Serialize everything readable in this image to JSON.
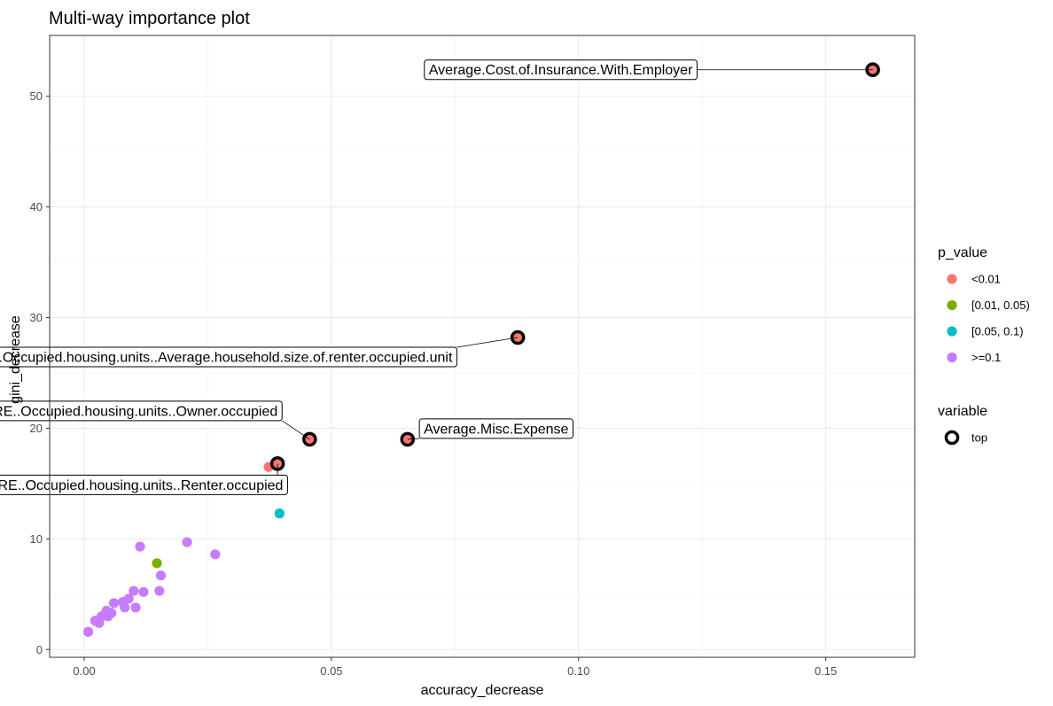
{
  "chart_data": {
    "type": "scatter",
    "title": "Multi-way importance plot",
    "xlabel": "accuracy_decrease",
    "ylabel": "gini_decrease",
    "xlim": [
      -0.007,
      0.168
    ],
    "ylim": [
      -0.7,
      55.5
    ],
    "xticks": [
      0.0,
      0.05,
      0.1,
      0.15
    ],
    "xtick_labels": [
      "0.00",
      "0.05",
      "0.10",
      "0.15"
    ],
    "yticks": [
      0,
      10,
      20,
      30,
      40,
      50
    ],
    "ytick_labels": [
      "0",
      "10",
      "20",
      "30",
      "40",
      "50"
    ],
    "grid": true,
    "legend_position": "right",
    "legend": {
      "color_title": "p_value",
      "color_entries": [
        {
          "label": "<0.01",
          "color": "#F8766D"
        },
        {
          "label": "[0.01, 0.05)",
          "color": "#7CAE00"
        },
        {
          "label": "[0.05, 0.1)",
          "color": "#00BFC4"
        },
        {
          "label": ">=0.1",
          "color": "#C77CFF"
        }
      ],
      "shape_title": "variable",
      "shape_entries": [
        {
          "label": "top"
        }
      ]
    },
    "points": [
      {
        "x": 0.1595,
        "y": 52.4,
        "group": "<0.01",
        "top": true
      },
      {
        "x": 0.0877,
        "y": 28.2,
        "group": "<0.01",
        "top": true
      },
      {
        "x": 0.0456,
        "y": 19.0,
        "group": "<0.01",
        "top": true
      },
      {
        "x": 0.0654,
        "y": 19.0,
        "group": "<0.01",
        "top": true
      },
      {
        "x": 0.0391,
        "y": 16.8,
        "group": "<0.01",
        "top": true
      },
      {
        "x": 0.0373,
        "y": 16.5,
        "group": "<0.01",
        "top": false
      },
      {
        "x": 0.0395,
        "y": 12.3,
        "group": "[0.05, 0.1)",
        "top": false
      },
      {
        "x": 0.0147,
        "y": 7.8,
        "group": "[0.01, 0.05)",
        "top": false
      },
      {
        "x": 0.0113,
        "y": 9.3,
        "group": ">=0.1",
        "top": false
      },
      {
        "x": 0.0208,
        "y": 9.7,
        "group": ">=0.1",
        "top": false
      },
      {
        "x": 0.0265,
        "y": 8.6,
        "group": ">=0.1",
        "top": false
      },
      {
        "x": 0.0155,
        "y": 6.7,
        "group": ">=0.1",
        "top": false
      },
      {
        "x": 0.0152,
        "y": 5.3,
        "group": ">=0.1",
        "top": false
      },
      {
        "x": 0.012,
        "y": 5.2,
        "group": ">=0.1",
        "top": false
      },
      {
        "x": 0.01,
        "y": 5.3,
        "group": ">=0.1",
        "top": false
      },
      {
        "x": 0.0104,
        "y": 3.8,
        "group": ">=0.1",
        "top": false
      },
      {
        "x": 0.009,
        "y": 4.6,
        "group": ">=0.1",
        "top": false
      },
      {
        "x": 0.0078,
        "y": 4.3,
        "group": ">=0.1",
        "top": false
      },
      {
        "x": 0.0082,
        "y": 3.8,
        "group": ">=0.1",
        "top": false
      },
      {
        "x": 0.006,
        "y": 4.2,
        "group": ">=0.1",
        "top": false
      },
      {
        "x": 0.0055,
        "y": 3.3,
        "group": ">=0.1",
        "top": false
      },
      {
        "x": 0.0048,
        "y": 3.0,
        "group": ">=0.1",
        "top": false
      },
      {
        "x": 0.0045,
        "y": 3.5,
        "group": ">=0.1",
        "top": false
      },
      {
        "x": 0.0035,
        "y": 3.0,
        "group": ">=0.1",
        "top": false
      },
      {
        "x": 0.003,
        "y": 2.4,
        "group": ">=0.1",
        "top": false
      },
      {
        "x": 0.0022,
        "y": 2.6,
        "group": ">=0.1",
        "top": false
      },
      {
        "x": 0.0008,
        "y": 1.6,
        "group": ">=0.1",
        "top": false
      }
    ],
    "labels": [
      {
        "text": "Average.Cost.of.Insurance.With.Employer",
        "x": 0.1595,
        "y": 52.4
      },
      {
        "text": "Estimate..HOUSING.TENURE..Occupied.housing.units..Average.household.size.of.renter.occupied.unit",
        "x": 0.0877,
        "y": 28.2
      },
      {
        "text": "Percent..HOUSING.TENURE..Occupied.housing.units..Owner.occupied",
        "x": 0.0456,
        "y": 19.0
      },
      {
        "text": "Average.Misc.Expense",
        "x": 0.0654,
        "y": 19.0
      },
      {
        "text": "Percent..HOUSING.TENURE..Occupied.housing.units..Renter.occupied",
        "x": 0.0391,
        "y": 16.8
      }
    ]
  }
}
